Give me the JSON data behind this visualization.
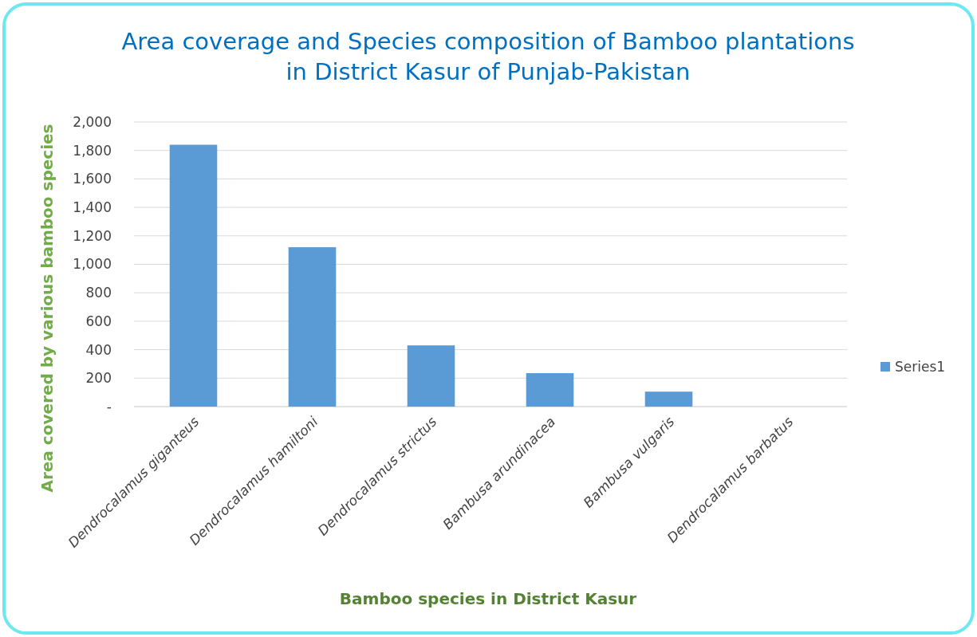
{
  "chart_data": {
    "type": "bar",
    "title": "Area coverage and Species composition of Bamboo plantations\nin District Kasur of Punjab-Pakistan",
    "xlabel": "Bamboo species in District Kasur",
    "ylabel": "Area covered by various bamboo species",
    "categories": [
      "Dendrocalamus giganteus",
      "Dendrocalamus hamiltoni",
      "Dendrocalamus strictus",
      "Bambusa arundinacea",
      "Bambusa vulgaris",
      "Dendrocalamus barbatus"
    ],
    "series": [
      {
        "name": "Series1",
        "color": "#5b9bd5",
        "values": [
          1840,
          1120,
          430,
          235,
          105,
          null
        ]
      }
    ],
    "ylim": [
      0,
      2000
    ],
    "yticks": [
      {
        "value": 0,
        "label": "-"
      },
      {
        "value": 200,
        "label": "200"
      },
      {
        "value": 400,
        "label": "400"
      },
      {
        "value": 600,
        "label": "600"
      },
      {
        "value": 800,
        "label": "800"
      },
      {
        "value": 1000,
        "label": "1,000"
      },
      {
        "value": 1200,
        "label": "1,200"
      },
      {
        "value": 1400,
        "label": "1,400"
      },
      {
        "value": 1600,
        "label": "1,600"
      },
      {
        "value": 1800,
        "label": "1,800"
      },
      {
        "value": 2000,
        "label": "2,000"
      }
    ],
    "grid": "y",
    "legend": "right"
  }
}
